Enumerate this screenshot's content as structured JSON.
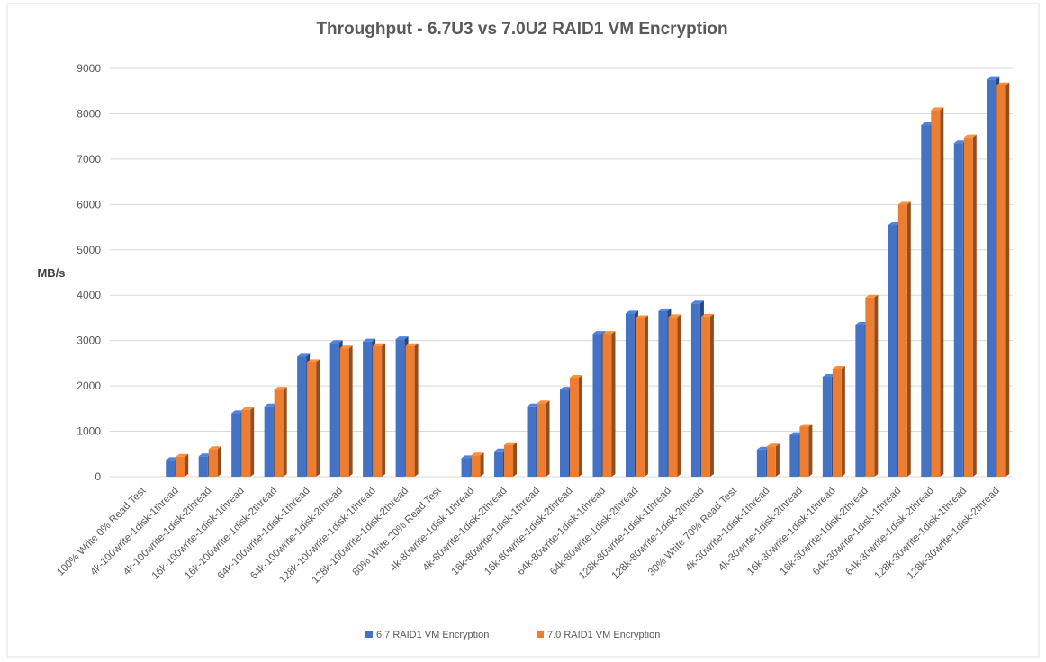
{
  "chart_data": {
    "type": "bar",
    "title": "Throughput - 6.7U3 vs 7.0U2 RAID1 VM Encryption",
    "xlabel": "",
    "ylabel": "MB/s",
    "ylim": [
      0,
      9000
    ],
    "yticks": [
      0,
      1000,
      2000,
      3000,
      4000,
      5000,
      6000,
      7000,
      8000,
      9000
    ],
    "grid": true,
    "legend_position": "bottom",
    "style": "3d-clustered-columns",
    "categories": [
      "100% Write 0% Read Test",
      "4k-100write-1disk-1thread",
      "4k-100write-1disk-2thread",
      "16k-100write-1disk-1thread",
      "16k-100write-1disk-2thread",
      "64k-100write-1disk-1thread",
      "64k-100write-1disk-2thread",
      "128k-100write-1disk-1thread",
      "128k-100write-1disk-2thread",
      "80% Write 20% Read Test",
      "4k-80write-1disk-1thread",
      "4k-80write-1disk-2thread",
      "16k-80write-1disk-1thread",
      "16k-80write-1disk-2thread",
      "64k-80write-1disk-1thread",
      "64k-80write-1disk-2thread",
      "128k-80write-1disk-1thread",
      "128k-80write-1disk-2thread",
      "30% Write 70% Read Test",
      "4k-30write-1disk-1thread",
      "4k-30write-1disk-2thread",
      "16k-30write-1disk-1thread",
      "16k-30write-1disk-2thread",
      "64k-30write-1disk-1thread",
      "64k-30write-1disk-2thread",
      "128k-30write-1disk-1thread",
      "128k-30write-1disk-2thread"
    ],
    "series": [
      {
        "name": "6.7 RAID1 VM Encryption",
        "color": "#4472C4",
        "values": [
          null,
          370,
          450,
          1400,
          1550,
          2650,
          2950,
          2980,
          3030,
          null,
          410,
          560,
          1550,
          1920,
          3150,
          3600,
          3650,
          3820,
          null,
          600,
          920,
          2200,
          3350,
          5550,
          7750,
          7350,
          8750
        ]
      },
      {
        "name": "7.0 RAID1 VM Encryption",
        "color": "#ED7D31",
        "values": [
          null,
          440,
          610,
          1470,
          1920,
          2530,
          2830,
          2880,
          2880,
          null,
          470,
          700,
          1620,
          2180,
          3150,
          3500,
          3520,
          3530,
          null,
          670,
          1100,
          2380,
          3950,
          6000,
          8080,
          7480,
          8630
        ]
      }
    ]
  }
}
